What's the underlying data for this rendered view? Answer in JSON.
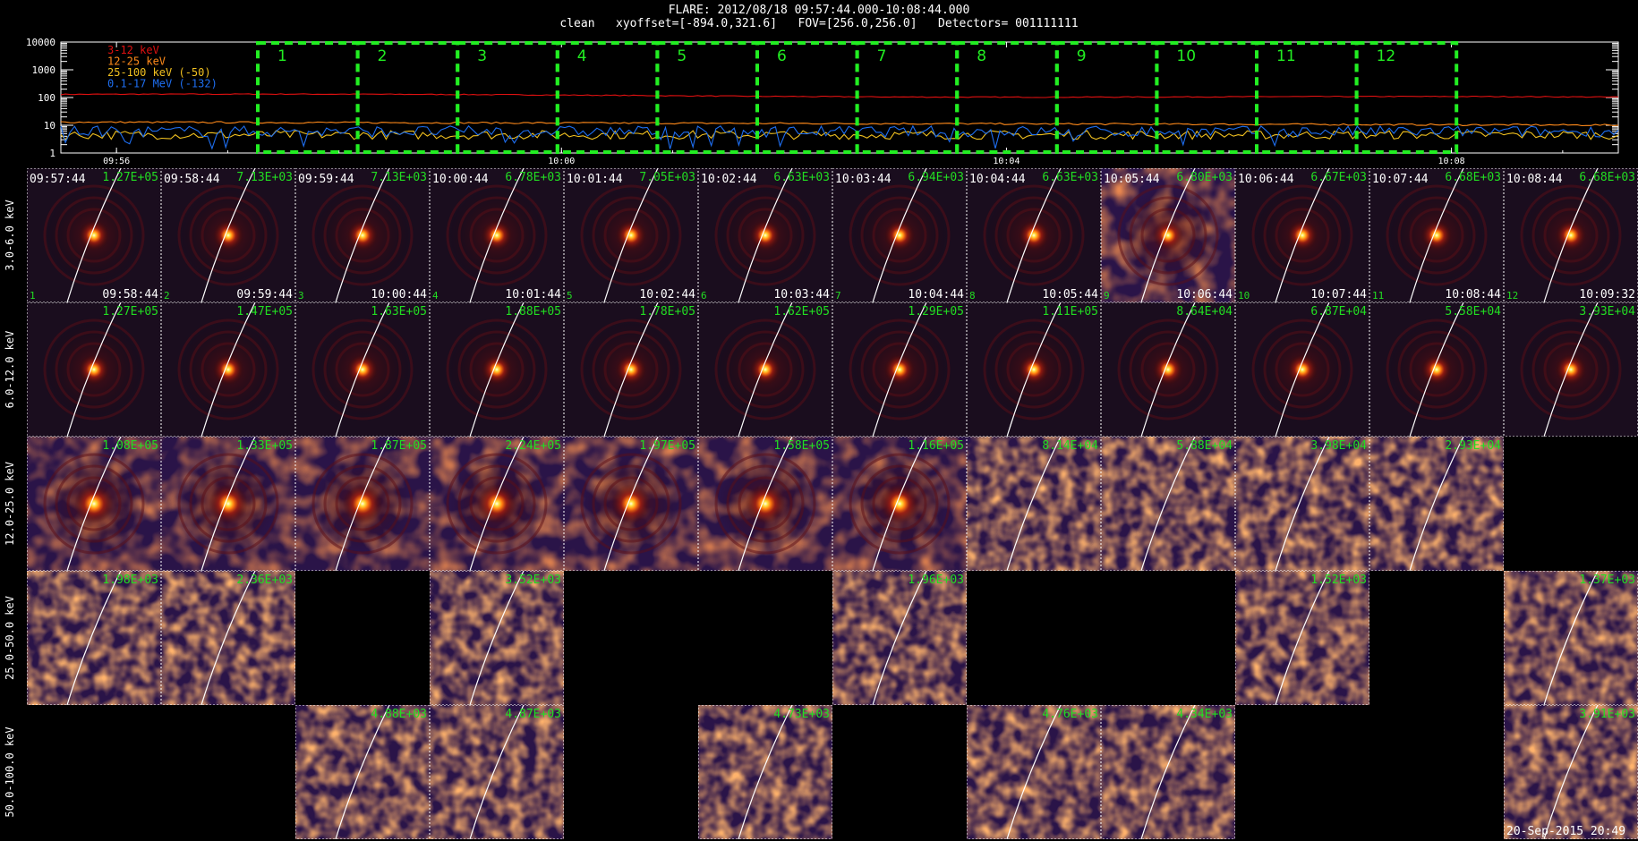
{
  "header": {
    "line1": "FLARE: 2012/08/18 09:57:44.000-10:08:44.000",
    "line2": "clean   xyoffset=[-894.0,321.6]   FOV=[256.0,256.0]   Detectors= 001111111"
  },
  "colors": {
    "c3_12": "#e01010",
    "c12_25": "#ff8a1a",
    "c25_100": "#f0c020",
    "c01_17": "#1e6ef0",
    "interval_box": "#22ee22",
    "label_green": "#22dd22",
    "limb": "#ffffff"
  },
  "chart_data": [
    {
      "type": "line",
      "title": "",
      "y_scale": "log",
      "ylim": [
        1,
        10000
      ],
      "y_ticks": [
        "10000",
        "1000",
        "100",
        "10",
        "1"
      ],
      "x_ticks": [
        "09:56",
        "10:00",
        "10:04",
        "10:08"
      ],
      "legend_position": "top-left",
      "series": [
        {
          "name": "3-12 keV",
          "color": "#e01010",
          "level": 130
        },
        {
          "name": "12-25 keV",
          "color": "#ff8a1a",
          "level": 13
        },
        {
          "name": "25-100 keV (-50)",
          "color": "#f0c020",
          "level": 4.5
        },
        {
          "name": "0.1-17 MeV (-132)",
          "color": "#1e6ef0",
          "level": 6
        }
      ],
      "intervals": [
        "1",
        "2",
        "3",
        "4",
        "5",
        "6",
        "7",
        "8",
        "9",
        "10",
        "11",
        "12"
      ]
    },
    {
      "type": "image-grid",
      "energy_bands": [
        "3.0-6.0 keV",
        "6.0-12.0 keV",
        "12.0-25.0 keV",
        "25.0-50.0 keV",
        "50.0-100.0 keV"
      ],
      "columns": [
        {
          "start": "09:57:44",
          "end": "09:58:44",
          "index": "1"
        },
        {
          "start": "09:58:44",
          "end": "09:59:44",
          "index": "2"
        },
        {
          "start": "09:59:44",
          "end": "10:00:44",
          "index": "3"
        },
        {
          "start": "10:00:44",
          "end": "10:01:44",
          "index": "4"
        },
        {
          "start": "10:01:44",
          "end": "10:02:44",
          "index": "5"
        },
        {
          "start": "10:02:44",
          "end": "10:03:44",
          "index": "6"
        },
        {
          "start": "10:03:44",
          "end": "10:04:44",
          "index": "7"
        },
        {
          "start": "10:04:44",
          "end": "10:05:44",
          "index": "8"
        },
        {
          "start": "10:05:44",
          "end": "10:06:44",
          "index": "9"
        },
        {
          "start": "10:06:44",
          "end": "10:07:44",
          "index": "10"
        },
        {
          "start": "10:07:44",
          "end": "10:08:44",
          "index": "11"
        },
        {
          "start": "10:08:44",
          "end": "10:09:32",
          "index": "12"
        }
      ],
      "panels": [
        {
          "row": 0,
          "col": 0,
          "max": "1.27E+05",
          "kind": "source"
        },
        {
          "row": 0,
          "col": 1,
          "max": "7.13E+03",
          "kind": "source"
        },
        {
          "row": 0,
          "col": 2,
          "max": "7.13E+03",
          "kind": "source"
        },
        {
          "row": 0,
          "col": 3,
          "max": "6.78E+03",
          "kind": "source"
        },
        {
          "row": 0,
          "col": 4,
          "max": "7.05E+03",
          "kind": "source"
        },
        {
          "row": 0,
          "col": 5,
          "max": "6.63E+03",
          "kind": "source"
        },
        {
          "row": 0,
          "col": 6,
          "max": "6.94E+03",
          "kind": "source"
        },
        {
          "row": 0,
          "col": 7,
          "max": "6.63E+03",
          "kind": "source"
        },
        {
          "row": 0,
          "col": 8,
          "max": "6.80E+03",
          "kind": "noisy-source"
        },
        {
          "row": 0,
          "col": 9,
          "max": "6.67E+03",
          "kind": "source"
        },
        {
          "row": 0,
          "col": 10,
          "max": "6.68E+03",
          "kind": "source"
        },
        {
          "row": 0,
          "col": 11,
          "max": "6.68E+03",
          "kind": "source"
        },
        {
          "row": 1,
          "col": 0,
          "max": "1.27E+05",
          "kind": "source"
        },
        {
          "row": 1,
          "col": 1,
          "max": "1.47E+05",
          "kind": "source"
        },
        {
          "row": 1,
          "col": 2,
          "max": "1.63E+05",
          "kind": "source"
        },
        {
          "row": 1,
          "col": 3,
          "max": "1.88E+05",
          "kind": "source"
        },
        {
          "row": 1,
          "col": 4,
          "max": "1.78E+05",
          "kind": "source"
        },
        {
          "row": 1,
          "col": 5,
          "max": "1.62E+05",
          "kind": "source"
        },
        {
          "row": 1,
          "col": 6,
          "max": "1.29E+05",
          "kind": "source"
        },
        {
          "row": 1,
          "col": 7,
          "max": "1.11E+05",
          "kind": "source"
        },
        {
          "row": 1,
          "col": 8,
          "max": "8.64E+04",
          "kind": "source"
        },
        {
          "row": 1,
          "col": 9,
          "max": "6.87E+04",
          "kind": "source"
        },
        {
          "row": 1,
          "col": 10,
          "max": "5.58E+04",
          "kind": "source"
        },
        {
          "row": 1,
          "col": 11,
          "max": "3.93E+04",
          "kind": "source"
        },
        {
          "row": 2,
          "col": 0,
          "max": "1.08E+05",
          "kind": "mixed"
        },
        {
          "row": 2,
          "col": 1,
          "max": "1.33E+05",
          "kind": "mixed"
        },
        {
          "row": 2,
          "col": 2,
          "max": "1.87E+05",
          "kind": "mixed"
        },
        {
          "row": 2,
          "col": 3,
          "max": "2.24E+05",
          "kind": "mixed"
        },
        {
          "row": 2,
          "col": 4,
          "max": "1.97E+05",
          "kind": "mixed"
        },
        {
          "row": 2,
          "col": 5,
          "max": "1.58E+05",
          "kind": "mixed"
        },
        {
          "row": 2,
          "col": 6,
          "max": "1.16E+05",
          "kind": "mixed"
        },
        {
          "row": 2,
          "col": 7,
          "max": "8.14E+04",
          "kind": "noise"
        },
        {
          "row": 2,
          "col": 8,
          "max": "5.88E+04",
          "kind": "noise"
        },
        {
          "row": 2,
          "col": 9,
          "max": "3.98E+04",
          "kind": "noise"
        },
        {
          "row": 2,
          "col": 10,
          "max": "2.93E+04",
          "kind": "noise"
        },
        {
          "row": 3,
          "col": 0,
          "max": "1.98E+03",
          "kind": "noise"
        },
        {
          "row": 3,
          "col": 1,
          "max": "2.36E+03",
          "kind": "noise"
        },
        {
          "row": 3,
          "col": 3,
          "max": "3.52E+03",
          "kind": "noise"
        },
        {
          "row": 3,
          "col": 6,
          "max": "1.96E+03",
          "kind": "noise"
        },
        {
          "row": 3,
          "col": 9,
          "max": "1.52E+03",
          "kind": "noise"
        },
        {
          "row": 3,
          "col": 11,
          "max": "1.37E+03",
          "kind": "noise"
        },
        {
          "row": 4,
          "col": 2,
          "max": "4.88E+03",
          "kind": "noise"
        },
        {
          "row": 4,
          "col": 3,
          "max": "4.87E+03",
          "kind": "noise"
        },
        {
          "row": 4,
          "col": 5,
          "max": "4.73E+03",
          "kind": "noise"
        },
        {
          "row": 4,
          "col": 7,
          "max": "4.76E+03",
          "kind": "noise"
        },
        {
          "row": 4,
          "col": 8,
          "max": "4.34E+03",
          "kind": "noise"
        },
        {
          "row": 4,
          "col": 11,
          "max": "3.91E+03",
          "kind": "noise"
        }
      ]
    }
  ],
  "footer": {
    "stamp": "20-Sep-2015 20:49"
  }
}
